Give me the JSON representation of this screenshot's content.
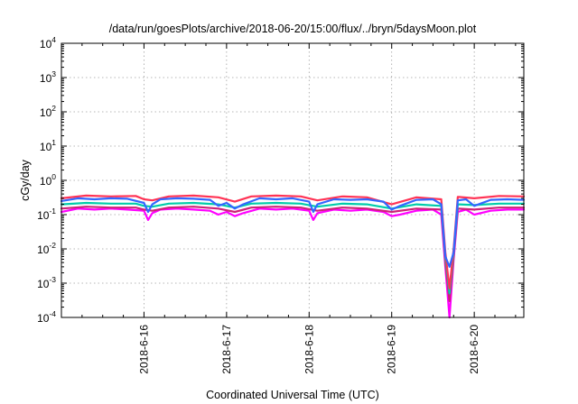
{
  "chart_data": {
    "type": "line",
    "title": "/data/run/goesPlots/archive/2018-06-20/15:00/flux/../bryn/5daysMoon.plot",
    "xlabel": "Coordinated Universal Time (UTC)",
    "ylabel": "cGy/day",
    "yscale": "log",
    "ylim": [
      0.0001,
      10000
    ],
    "xlim": [
      0,
      5.6
    ],
    "x_tick_values": [
      1,
      2,
      3,
      4,
      5
    ],
    "x_tick_labels": [
      "2018-6-16",
      "2018-6-17",
      "2018-6-18",
      "2018-6-19",
      "2018-6-20"
    ],
    "y_ticks": [
      {
        "value": 0.0001,
        "base": "10",
        "exp": "-4"
      },
      {
        "value": 0.001,
        "base": "10",
        "exp": "-3"
      },
      {
        "value": 0.01,
        "base": "10",
        "exp": "-2"
      },
      {
        "value": 0.1,
        "base": "10",
        "exp": "-1"
      },
      {
        "value": 1,
        "base": "10",
        "exp": "0"
      },
      {
        "value": 10,
        "base": "10",
        "exp": "1"
      },
      {
        "value": 100,
        "base": "10",
        "exp": "2"
      },
      {
        "value": 1000,
        "base": "10",
        "exp": "3"
      },
      {
        "value": 10000,
        "base": "10",
        "exp": "4"
      }
    ],
    "grid": true,
    "x_units": "days since 2018-06-15 00:00 UTC",
    "series": [
      {
        "color": "#ff00ff",
        "x": [
          0,
          0.2,
          0.4,
          0.6,
          0.8,
          1.0,
          1.05,
          1.1,
          1.2,
          1.4,
          1.6,
          1.8,
          1.9,
          2.0,
          2.1,
          2.2,
          2.4,
          2.6,
          2.8,
          3.0,
          3.05,
          3.1,
          3.3,
          3.5,
          3.7,
          3.9,
          4.0,
          4.1,
          4.3,
          4.5,
          4.6,
          4.65,
          4.7,
          4.75,
          4.8,
          4.9,
          5.0,
          5.2,
          5.4,
          5.6
        ],
        "y": [
          0.12,
          0.15,
          0.14,
          0.15,
          0.14,
          0.13,
          0.07,
          0.11,
          0.14,
          0.15,
          0.14,
          0.13,
          0.1,
          0.12,
          0.09,
          0.11,
          0.15,
          0.14,
          0.15,
          0.13,
          0.07,
          0.11,
          0.14,
          0.13,
          0.14,
          0.12,
          0.09,
          0.1,
          0.13,
          0.14,
          0.1,
          0.003,
          0.0001,
          0.005,
          0.12,
          0.14,
          0.1,
          0.13,
          0.14,
          0.14
        ]
      },
      {
        "color": "#cc2277",
        "x": [
          0,
          0.3,
          0.6,
          0.9,
          1.0,
          1.1,
          1.3,
          1.6,
          1.9,
          2.1,
          2.3,
          2.6,
          2.9,
          3.1,
          3.4,
          3.7,
          4.0,
          4.3,
          4.6,
          4.65,
          4.7,
          4.75,
          4.8,
          5.0,
          5.3,
          5.6
        ],
        "y": [
          0.15,
          0.17,
          0.16,
          0.16,
          0.14,
          0.13,
          0.16,
          0.17,
          0.15,
          0.12,
          0.16,
          0.17,
          0.16,
          0.13,
          0.16,
          0.15,
          0.12,
          0.15,
          0.14,
          0.004,
          0.0003,
          0.006,
          0.15,
          0.14,
          0.16,
          0.16
        ]
      },
      {
        "color": "#00ccaa",
        "x": [
          0,
          0.3,
          0.6,
          0.9,
          1.0,
          1.1,
          1.3,
          1.6,
          1.9,
          2.1,
          2.3,
          2.6,
          2.9,
          3.1,
          3.4,
          3.7,
          4.0,
          4.3,
          4.6,
          4.65,
          4.7,
          4.75,
          4.8,
          5.0,
          5.3,
          5.6
        ],
        "y": [
          0.2,
          0.22,
          0.21,
          0.21,
          0.18,
          0.17,
          0.21,
          0.22,
          0.2,
          0.16,
          0.21,
          0.22,
          0.21,
          0.17,
          0.21,
          0.2,
          0.15,
          0.2,
          0.18,
          0.006,
          0.0005,
          0.008,
          0.2,
          0.19,
          0.21,
          0.21
        ]
      },
      {
        "color": "#ff3355",
        "x": [
          0,
          0.3,
          0.6,
          0.9,
          1.0,
          1.1,
          1.3,
          1.6,
          1.9,
          2.1,
          2.3,
          2.6,
          2.9,
          3.1,
          3.4,
          3.7,
          4.0,
          4.3,
          4.6,
          4.65,
          4.7,
          4.75,
          4.8,
          5.0,
          5.3,
          5.6
        ],
        "y": [
          0.3,
          0.36,
          0.34,
          0.35,
          0.28,
          0.26,
          0.34,
          0.36,
          0.32,
          0.24,
          0.34,
          0.36,
          0.34,
          0.26,
          0.34,
          0.32,
          0.2,
          0.32,
          0.28,
          0.008,
          0.0007,
          0.01,
          0.33,
          0.3,
          0.35,
          0.34
        ]
      },
      {
        "color": "#3366ff",
        "x": [
          0,
          0.2,
          0.4,
          0.6,
          0.8,
          1.0,
          1.05,
          1.1,
          1.2,
          1.4,
          1.6,
          1.8,
          1.9,
          2.0,
          2.1,
          2.2,
          2.4,
          2.6,
          2.8,
          3.0,
          3.05,
          3.1,
          3.3,
          3.5,
          3.7,
          3.9,
          4.0,
          4.1,
          4.3,
          4.5,
          4.6,
          4.65,
          4.7,
          4.75,
          4.8,
          4.9,
          5.0,
          5.2,
          5.4,
          5.6
        ],
        "y": [
          0.25,
          0.3,
          0.28,
          0.3,
          0.29,
          0.22,
          0.12,
          0.2,
          0.28,
          0.3,
          0.29,
          0.27,
          0.18,
          0.22,
          0.15,
          0.2,
          0.3,
          0.28,
          0.3,
          0.24,
          0.12,
          0.2,
          0.28,
          0.27,
          0.28,
          0.24,
          0.14,
          0.18,
          0.27,
          0.28,
          0.2,
          0.006,
          0.003,
          0.008,
          0.26,
          0.28,
          0.18,
          0.27,
          0.28,
          0.27
        ]
      }
    ]
  }
}
